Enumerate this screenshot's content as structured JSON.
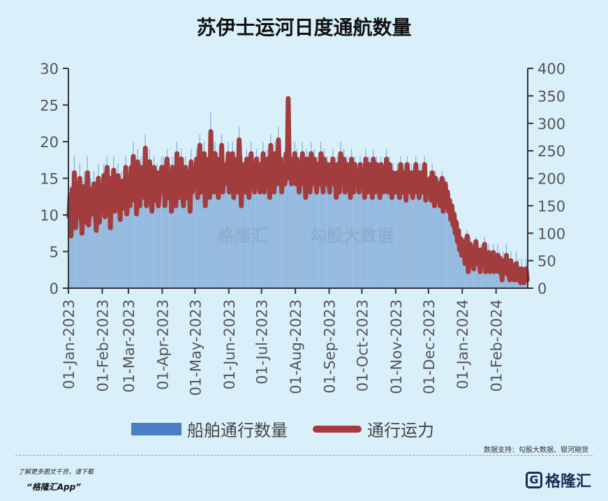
{
  "title": "苏伊士运河日度通航数量",
  "legend": {
    "bars": "船舶通行数量",
    "line": "通行运力"
  },
  "source": "数据支持：勾股大数据、银河期货",
  "promo": {
    "line1": "了解更多图文干货，请下载",
    "line2": "“格隆汇App”"
  },
  "logo": {
    "mark": "G",
    "text": "格隆汇"
  },
  "watermark": {
    "left": "格隆汇",
    "right": "勾股大数据"
  },
  "colors": {
    "bars": "#4a7fc1",
    "line": "#a33c3c",
    "background": "#d9f0fb"
  },
  "chart_data": {
    "type": "bar",
    "title": "苏伊士运河日度通航数量",
    "x_ticks": [
      "01-Jan-2023",
      "01-Feb-2023",
      "01-Mar-2023",
      "01-Apr-2023",
      "01-May-2023",
      "01-Jun-2023",
      "01-Jul-2023",
      "01-Aug-2023",
      "01-Sep-2023",
      "01-Oct-2023",
      "01-Nov-2023",
      "01-Dec-2023",
      "01-Jan-2024",
      "01-Feb-2024"
    ],
    "y_left": {
      "lim": [
        0,
        30
      ],
      "ticks": [
        0,
        5,
        10,
        15,
        20,
        25,
        30
      ]
    },
    "y_right": {
      "lim": [
        0,
        400
      ],
      "ticks": [
        0,
        50,
        100,
        150,
        200,
        250,
        300,
        350,
        400
      ]
    },
    "series": [
      {
        "name": "船舶通行数量",
        "axis": "left",
        "type": "bar",
        "monthly_values": [
          [
            10,
            14,
            8,
            16,
            12,
            18,
            9,
            13,
            15,
            11,
            17,
            12,
            8,
            14,
            16,
            10,
            13,
            18,
            9,
            12,
            15,
            11,
            14,
            16,
            12,
            9,
            13,
            17,
            10,
            14,
            12
          ],
          [
            13,
            17,
            11,
            15,
            18,
            12,
            14,
            9,
            16,
            13,
            18,
            11,
            15,
            12,
            17,
            14,
            10,
            16,
            13,
            15,
            12,
            18,
            11,
            14
          ],
          [
            16,
            12,
            18,
            14,
            20,
            13,
            17,
            11,
            19,
            15,
            12,
            18,
            14,
            16,
            13,
            21,
            12,
            17,
            15,
            19,
            14,
            11,
            16,
            18,
            13,
            15,
            17,
            12,
            14,
            16,
            18
          ],
          [
            14,
            18,
            12,
            16,
            19,
            13,
            15,
            17,
            11,
            18,
            14,
            16,
            12,
            20,
            15,
            13,
            17,
            19,
            14,
            12,
            16,
            18,
            13,
            15,
            17,
            11,
            19,
            14,
            16,
            15
          ],
          [
            15,
            19,
            13,
            17,
            21,
            14,
            18,
            16,
            20,
            12,
            17,
            15,
            19,
            13,
            24,
            16,
            18,
            14,
            20,
            15,
            17,
            13,
            19,
            16,
            21,
            14,
            18,
            15,
            17,
            16,
            20
          ],
          [
            14,
            18,
            16,
            20,
            13,
            17,
            15,
            19,
            14,
            22,
            16,
            12,
            18,
            15,
            17,
            14,
            19,
            16,
            13,
            18,
            20,
            15,
            17,
            14,
            16,
            19,
            15,
            18,
            14,
            17
          ],
          [
            16,
            20,
            14,
            18,
            15,
            19,
            17,
            13,
            21,
            16,
            18,
            14,
            20,
            17,
            15,
            22,
            16,
            19,
            14,
            18,
            17,
            15,
            20,
            16,
            24,
            17,
            19,
            15,
            18,
            16,
            20
          ],
          [
            15,
            19,
            17,
            14,
            18,
            16,
            20,
            15,
            17,
            13,
            19,
            16,
            18,
            14,
            20,
            17,
            15,
            19,
            16,
            14,
            18,
            17,
            15,
            20,
            16,
            14,
            19,
            17,
            15,
            18,
            16
          ],
          [
            14,
            18,
            16,
            19,
            15,
            17,
            13,
            18,
            16,
            14,
            20,
            15,
            17,
            19,
            14,
            16,
            18,
            15,
            17,
            13,
            19,
            16,
            14,
            18,
            15,
            17,
            16,
            14,
            18,
            15
          ],
          [
            15,
            17,
            13,
            19,
            16,
            14,
            18,
            15,
            17,
            13,
            19,
            16,
            14,
            18,
            15,
            17,
            13,
            18,
            16,
            14,
            17,
            15,
            19,
            14,
            16,
            18,
            15,
            13,
            17,
            16,
            14
          ],
          [
            14,
            17,
            15,
            13,
            18,
            16,
            14,
            17,
            15,
            13,
            18,
            15,
            16,
            14,
            17,
            13,
            16,
            15,
            18,
            14,
            16,
            13,
            17,
            15,
            14,
            16,
            18,
            13,
            15,
            14
          ],
          [
            14,
            16,
            13,
            17,
            15,
            12,
            16,
            14,
            13,
            15,
            12,
            14,
            16,
            11,
            13,
            15,
            12,
            14,
            11,
            13,
            10,
            12,
            9,
            11,
            8,
            10,
            7,
            9,
            6,
            8,
            5
          ],
          [
            5,
            7,
            4,
            6,
            8,
            3,
            5,
            7,
            4,
            6,
            3,
            5,
            7,
            4,
            6,
            5,
            3,
            6,
            4,
            5,
            7,
            3,
            5,
            4,
            6,
            3,
            5,
            4,
            6,
            3,
            5
          ],
          [
            4,
            6,
            3,
            5,
            4,
            2,
            5,
            3,
            4,
            6,
            3,
            4,
            2,
            5,
            3,
            4,
            2,
            3,
            5,
            2,
            4,
            3,
            2,
            4,
            3,
            2,
            3,
            4,
            2
          ]
        ]
      },
      {
        "name": "通行运力",
        "axis": "right",
        "type": "line",
        "monthly_values": [
          [
            130,
            170,
            95,
            180,
            140,
            210,
            110,
            150,
            190,
            130,
            200,
            145,
            100,
            170,
            185,
            120,
            160,
            210,
            115,
            145,
            180,
            135,
            165,
            190,
            150,
            105,
            160,
            200,
            120,
            170,
            150
          ],
          [
            160,
            205,
            130,
            190,
            220,
            150,
            175,
            110,
            200,
            165,
            215,
            140,
            185,
            150,
            205,
            170,
            125,
            195,
            160,
            185,
            145,
            220,
            135,
            170
          ],
          [
            195,
            150,
            220,
            170,
            240,
            160,
            210,
            135,
            230,
            180,
            150,
            220,
            175,
            200,
            165,
            255,
            150,
            210,
            185,
            230,
            175,
            140,
            200,
            220,
            160,
            185,
            210,
            150,
            175,
            200,
            220
          ],
          [
            175,
            220,
            150,
            200,
            235,
            165,
            190,
            210,
            140,
            220,
            175,
            200,
            150,
            245,
            185,
            165,
            210,
            235,
            175,
            150,
            200,
            220,
            165,
            190,
            210,
            140,
            230,
            175,
            200,
            190
          ],
          [
            190,
            235,
            165,
            210,
            260,
            175,
            225,
            200,
            245,
            150,
            210,
            190,
            235,
            165,
            285,
            200,
            225,
            175,
            245,
            190,
            210,
            165,
            235,
            200,
            260,
            175,
            225,
            190,
            210,
            200,
            245
          ],
          [
            175,
            225,
            200,
            245,
            165,
            210,
            190,
            235,
            175,
            270,
            200,
            150,
            225,
            190,
            210,
            175,
            235,
            200,
            165,
            225,
            245,
            190,
            210,
            175,
            200,
            235,
            190,
            225,
            175,
            210
          ],
          [
            200,
            245,
            175,
            225,
            190,
            235,
            210,
            165,
            260,
            200,
            225,
            175,
            245,
            210,
            190,
            270,
            200,
            235,
            175,
            225,
            210,
            190,
            245,
            200,
            345,
            210,
            235,
            190,
            225,
            200,
            245
          ],
          [
            190,
            235,
            210,
            175,
            225,
            200,
            245,
            190,
            210,
            165,
            235,
            200,
            225,
            175,
            245,
            210,
            190,
            235,
            200,
            175,
            225,
            210,
            190,
            245,
            200,
            175,
            235,
            210,
            190,
            225,
            200
          ],
          [
            175,
            225,
            200,
            235,
            190,
            210,
            165,
            225,
            200,
            175,
            245,
            190,
            210,
            235,
            175,
            200,
            225,
            190,
            210,
            165,
            235,
            200,
            175,
            225,
            190,
            210,
            200,
            175,
            225,
            190
          ],
          [
            190,
            210,
            165,
            235,
            200,
            175,
            225,
            190,
            210,
            165,
            235,
            200,
            175,
            225,
            190,
            210,
            165,
            225,
            200,
            175,
            210,
            190,
            235,
            175,
            200,
            225,
            190,
            165,
            210,
            200,
            175
          ],
          [
            175,
            210,
            190,
            165,
            225,
            200,
            175,
            210,
            190,
            160,
            225,
            190,
            200,
            175,
            210,
            165,
            200,
            190,
            225,
            175,
            200,
            165,
            210,
            190,
            175,
            200,
            225,
            160,
            190,
            175
          ],
          [
            175,
            200,
            160,
            210,
            190,
            150,
            200,
            175,
            160,
            190,
            150,
            175,
            200,
            140,
            160,
            190,
            150,
            175,
            140,
            160,
            125,
            150,
            115,
            135,
            100,
            120,
            85,
            105,
            70,
            90,
            60
          ],
          [
            60,
            85,
            45,
            75,
            95,
            30,
            60,
            80,
            45,
            70,
            35,
            60,
            85,
            45,
            70,
            55,
            30,
            70,
            45,
            60,
            80,
            30,
            55,
            45,
            65,
            30,
            55,
            40,
            65,
            30,
            50
          ],
          [
            45,
            60,
            30,
            55,
            40,
            15,
            50,
            30,
            40,
            60,
            25,
            40,
            15,
            50,
            30,
            40,
            15,
            25,
            45,
            15,
            35,
            25,
            10,
            35,
            20,
            10,
            25,
            35,
            15
          ]
        ]
      }
    ]
  }
}
